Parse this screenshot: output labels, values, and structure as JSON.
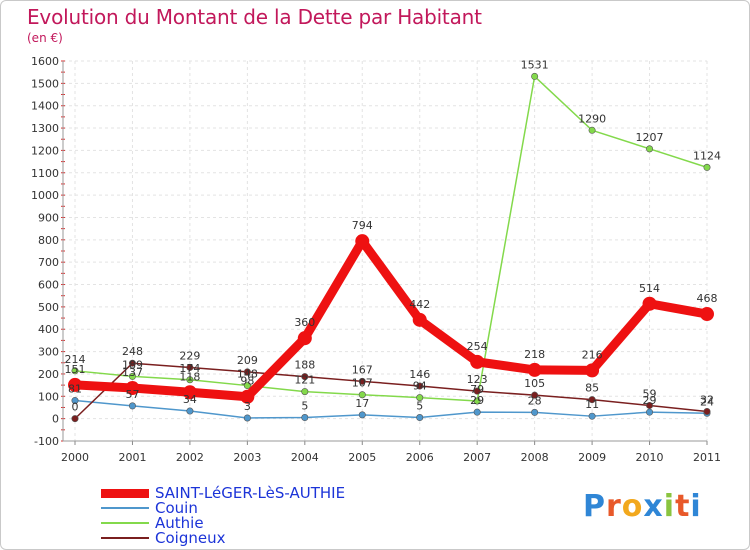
{
  "title": "Evolution du Montant de la Dette par Habitant",
  "unit": "(en €)",
  "logo": "Proxiti",
  "chart_data": {
    "type": "line",
    "x": [
      "2000",
      "2001",
      "2002",
      "2003",
      "2004",
      "2005",
      "2006",
      "2007",
      "2008",
      "2009",
      "2010",
      "2011"
    ],
    "ylim": [
      -100,
      1600
    ],
    "yticks": [
      -100,
      0,
      100,
      200,
      300,
      400,
      500,
      600,
      700,
      800,
      900,
      1000,
      1100,
      1200,
      1300,
      1400,
      1500,
      1600
    ],
    "grid": true,
    "legend_position": "bottom-left",
    "series": [
      {
        "name": "SAINT-LéGER-LèS-AUTHIE",
        "color": "#ee1111",
        "values": [
          151,
          137,
          118,
          98,
          360,
          794,
          442,
          254,
          218,
          216,
          514,
          468
        ],
        "labels": [
          "151",
          "137",
          "118",
          "98",
          "360",
          "794",
          "442",
          "254",
          "218",
          "216",
          "514",
          "468"
        ]
      },
      {
        "name": "Couin",
        "color": "#4f97cc",
        "values": [
          81,
          57,
          34,
          3,
          5,
          17,
          5,
          29,
          28,
          11,
          29,
          24
        ],
        "labels": [
          "81",
          "57",
          "34",
          "3",
          "5",
          "17",
          "5",
          "29",
          "28",
          "11",
          "29",
          "24"
        ]
      },
      {
        "name": "Authie",
        "color": "#83d94b",
        "values": [
          214,
          189,
          174,
          148,
          121,
          107,
          94,
          79,
          1531,
          1290,
          1207,
          1124
        ],
        "labels": [
          "214",
          "189",
          "174",
          "148",
          "121",
          "107",
          "94",
          "79",
          "1531",
          "1290",
          "1207",
          "1124"
        ]
      },
      {
        "name": "Coigneux",
        "color": "#7a1f1f",
        "values": [
          0,
          248,
          229,
          209,
          188,
          167,
          146,
          123,
          105,
          85,
          59,
          32
        ],
        "labels": [
          "0",
          "248",
          "229",
          "209",
          "188",
          "167",
          "146",
          "123",
          "105",
          "85",
          "59",
          "32"
        ]
      }
    ]
  }
}
